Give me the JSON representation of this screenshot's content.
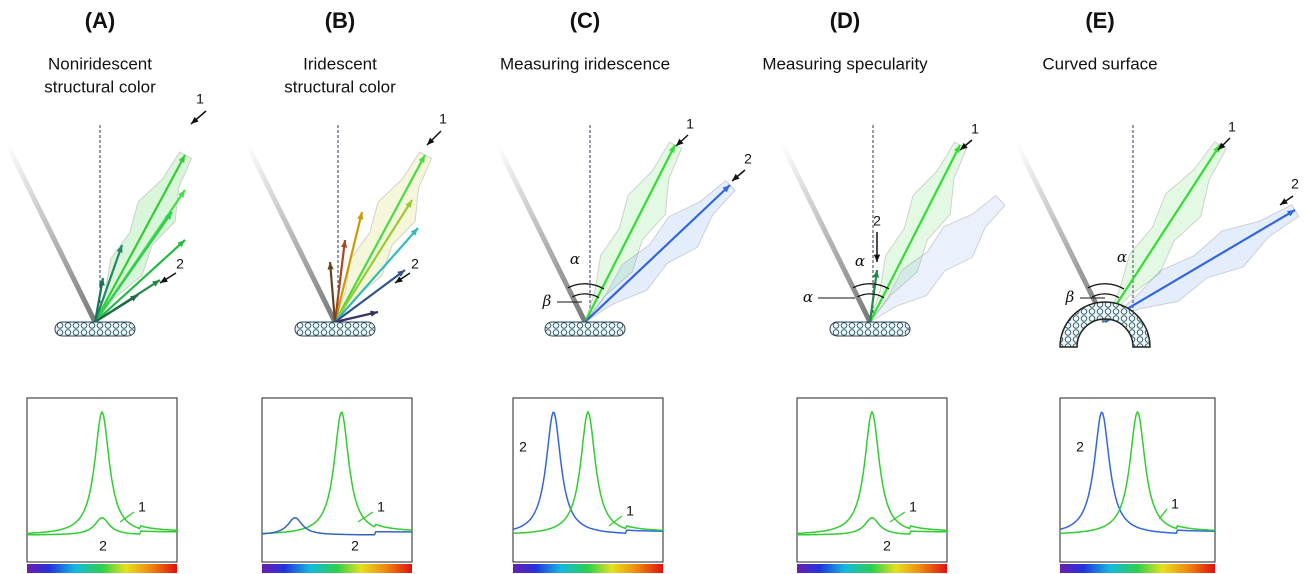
{
  "panels": [
    {
      "label": "(A)",
      "title": [
        "Noniridescent",
        "structural color"
      ],
      "diagram_labels": [
        "1",
        "2"
      ],
      "plot_labels": [
        "1",
        "2"
      ]
    },
    {
      "label": "(B)",
      "title": [
        "Iridescent",
        "structural color"
      ],
      "diagram_labels": [
        "1",
        "2"
      ],
      "plot_labels": [
        "1",
        "2"
      ]
    },
    {
      "label": "(C)",
      "title": [
        "Measuring iridescence"
      ],
      "diagram_labels": [
        "1",
        "2",
        "α",
        "β"
      ],
      "plot_labels": [
        "2",
        "1"
      ]
    },
    {
      "label": "(D)",
      "title": [
        "Measuring specularity"
      ],
      "diagram_labels": [
        "1",
        "2",
        "α",
        "α"
      ],
      "plot_labels": [
        "1",
        "2"
      ]
    },
    {
      "label": "(E)",
      "title": [
        "Curved surface"
      ],
      "diagram_labels": [
        "1",
        "2",
        "α",
        "β"
      ],
      "plot_labels": [
        "2",
        "1"
      ]
    }
  ]
}
